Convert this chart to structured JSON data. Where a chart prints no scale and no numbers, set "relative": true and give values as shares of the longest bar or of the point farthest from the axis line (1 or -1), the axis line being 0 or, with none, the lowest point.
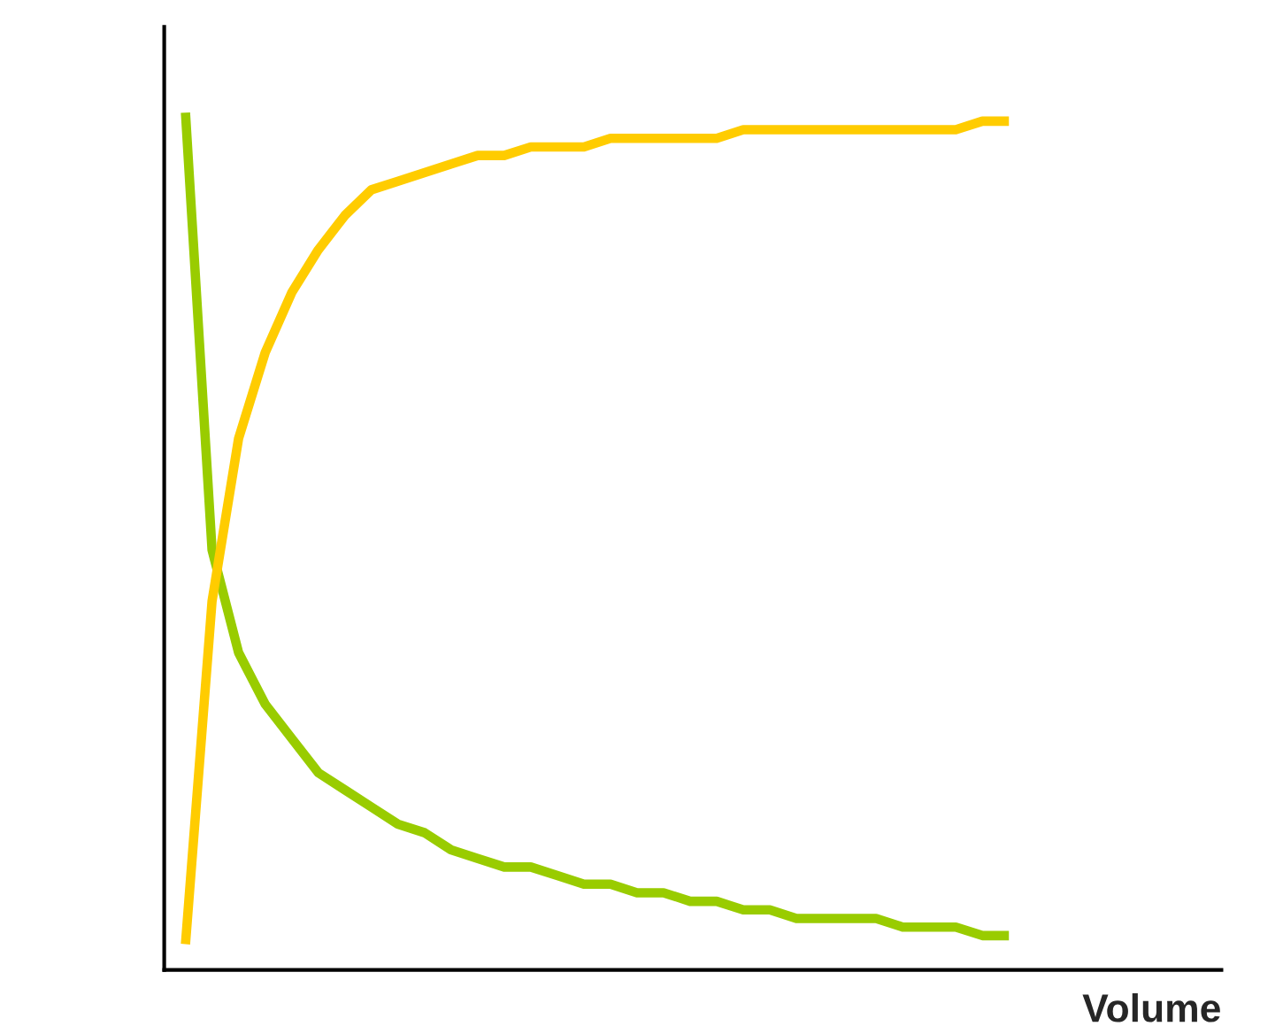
{
  "chart_data": {
    "type": "line",
    "relative": true,
    "xlabel": "Volume",
    "marker": "none",
    "line_style": "solid",
    "categories": [
      null,
      null,
      null,
      null,
      null,
      null,
      null,
      null,
      null,
      null,
      null,
      null,
      null,
      null,
      null,
      null,
      null,
      null,
      null,
      null,
      null,
      null,
      null,
      null,
      null,
      null,
      null,
      null,
      null,
      null,
      null,
      null
    ],
    "series": [
      {
        "color": "#99cc00",
        "values": [
          1.0,
          0.49,
          0.37,
          0.31,
          0.27,
          0.23,
          0.21,
          0.19,
          0.17,
          0.16,
          0.14,
          0.13,
          0.12,
          0.12,
          0.11,
          0.1,
          0.1,
          0.09,
          0.09,
          0.08,
          0.08,
          0.07,
          0.07,
          0.06,
          0.06,
          0.06,
          0.06,
          0.05,
          0.05,
          0.05,
          0.04,
          0.04
        ]
      },
      {
        "color": "#ffcc00",
        "values": [
          0.03,
          0.43,
          0.62,
          0.72,
          0.79,
          0.84,
          0.88,
          0.91,
          0.92,
          0.93,
          0.94,
          0.95,
          0.95,
          0.96,
          0.96,
          0.96,
          0.97,
          0.97,
          0.97,
          0.97,
          0.97,
          0.98,
          0.98,
          0.98,
          0.98,
          0.98,
          0.98,
          0.98,
          0.98,
          0.98,
          0.99,
          0.99
        ]
      }
    ]
  }
}
